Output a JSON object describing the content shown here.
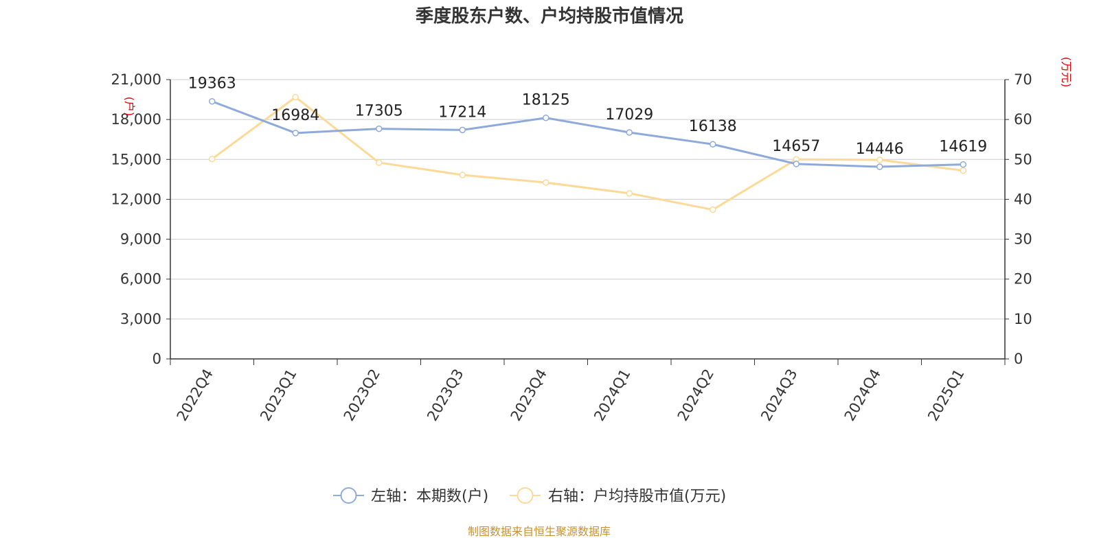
{
  "title": "季度股东户数、户均持股市值情况",
  "source": "制图数据来自恒生聚源数据库",
  "colors": {
    "left_series": "#8eaadb",
    "right_series": "#fdd998",
    "unit_text": "#e00000",
    "source_text": "#c8912f"
  },
  "chart_data": {
    "type": "line",
    "categories": [
      "2022Q4",
      "2023Q1",
      "2023Q2",
      "2023Q3",
      "2023Q4",
      "2024Q1",
      "2024Q2",
      "2024Q3",
      "2024Q4",
      "2025Q1"
    ],
    "left_axis": {
      "unit": "(户)",
      "ylim": [
        0,
        21000
      ],
      "ticks": [
        "0",
        "3,000",
        "6,000",
        "9,000",
        "12,000",
        "15,000",
        "18,000",
        "21,000"
      ]
    },
    "right_axis": {
      "unit": "(万元)",
      "ylim": [
        0,
        70
      ],
      "ticks": [
        "0",
        "10",
        "20",
        "30",
        "40",
        "50",
        "60",
        "70"
      ]
    },
    "grid": true,
    "legend_position": "bottom-center",
    "series": [
      {
        "name": "左轴：本期数(户)",
        "axis": "left",
        "values": [
          19363,
          16984,
          17305,
          17214,
          18125,
          17029,
          16138,
          14657,
          14446,
          14619
        ],
        "labels": [
          "19363",
          "16984",
          "17305",
          "17214",
          "18125",
          "17029",
          "16138",
          "14657",
          "14446",
          "14619"
        ]
      },
      {
        "name": "右轴：户均持股市值(万元)",
        "axis": "right",
        "values": [
          50.1,
          65.6,
          49.2,
          46.1,
          44.2,
          41.5,
          37.4,
          50.0,
          49.9,
          47.2
        ]
      }
    ]
  }
}
